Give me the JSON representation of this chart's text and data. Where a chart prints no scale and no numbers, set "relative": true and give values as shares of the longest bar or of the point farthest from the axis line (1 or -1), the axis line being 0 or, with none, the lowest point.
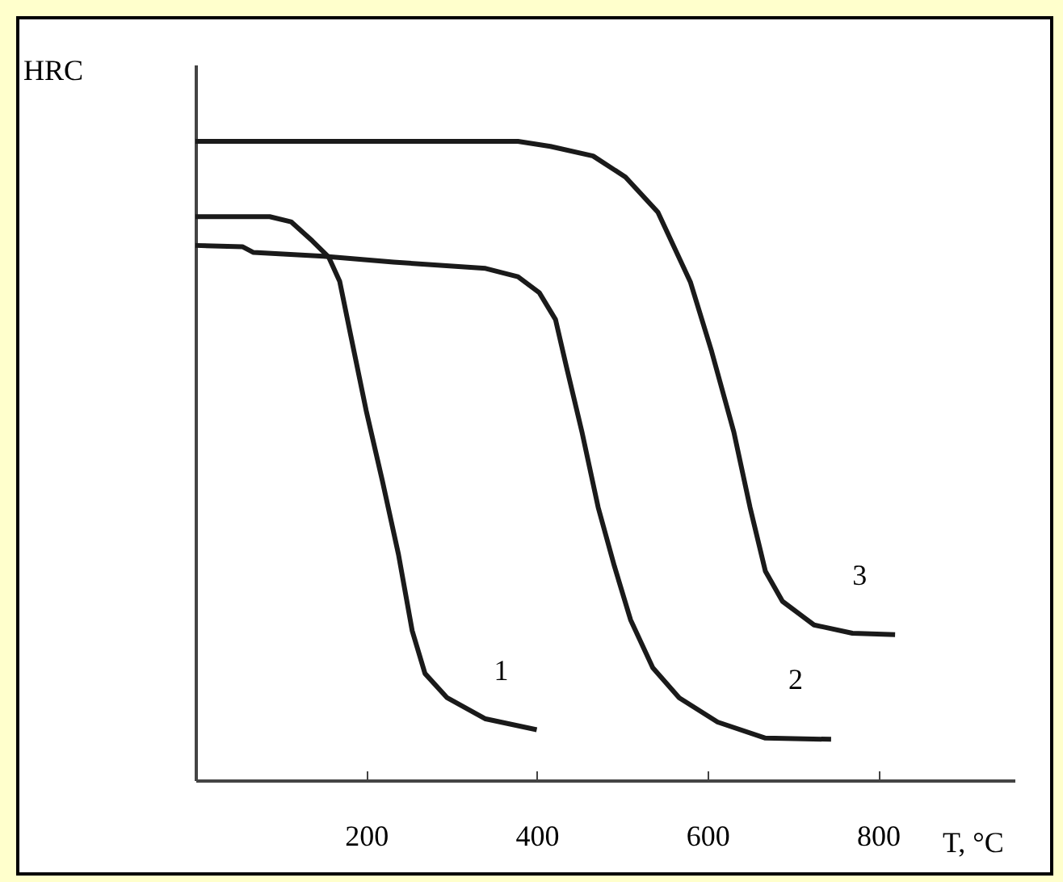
{
  "chart_data": {
    "type": "line",
    "xlabel": "T, °C",
    "ylabel": "HRC",
    "relative": true,
    "xlim": [
      0,
      960
    ],
    "xticks": [
      200,
      400,
      600,
      800
    ],
    "grid": false,
    "legend": false,
    "marker": "none",
    "line_style": "solid",
    "series": [
      {
        "name": "1",
        "color": "#1a1a1a",
        "x": [
          0,
          87,
          112,
          137,
          156,
          169,
          182,
          200,
          219,
          238,
          254,
          269,
          295,
          340,
          400
        ],
        "values": [
          0.882,
          0.882,
          0.874,
          0.844,
          0.819,
          0.781,
          0.696,
          0.579,
          0.469,
          0.353,
          0.234,
          0.167,
          0.129,
          0.096,
          0.079
        ]
      },
      {
        "name": "2",
        "color": "#1a1a1a",
        "x": [
          0,
          55,
          68,
          150,
          232,
          340,
          378,
          403,
          422,
          435,
          453,
          472,
          491,
          510,
          536,
          567,
          612,
          668,
          745
        ],
        "values": [
          0.837,
          0.835,
          0.826,
          0.82,
          0.811,
          0.801,
          0.788,
          0.763,
          0.721,
          0.646,
          0.545,
          0.427,
          0.335,
          0.251,
          0.176,
          0.129,
          0.091,
          0.066,
          0.064
        ]
      },
      {
        "name": "3",
        "color": "#1a1a1a",
        "x": [
          0,
          378,
          416,
          466,
          504,
          542,
          580,
          605,
          631,
          650,
          668,
          688,
          725,
          770,
          820
        ],
        "values": [
          1.0,
          1.0,
          0.992,
          0.977,
          0.944,
          0.889,
          0.78,
          0.671,
          0.545,
          0.427,
          0.327,
          0.28,
          0.243,
          0.23,
          0.228
        ]
      }
    ]
  }
}
